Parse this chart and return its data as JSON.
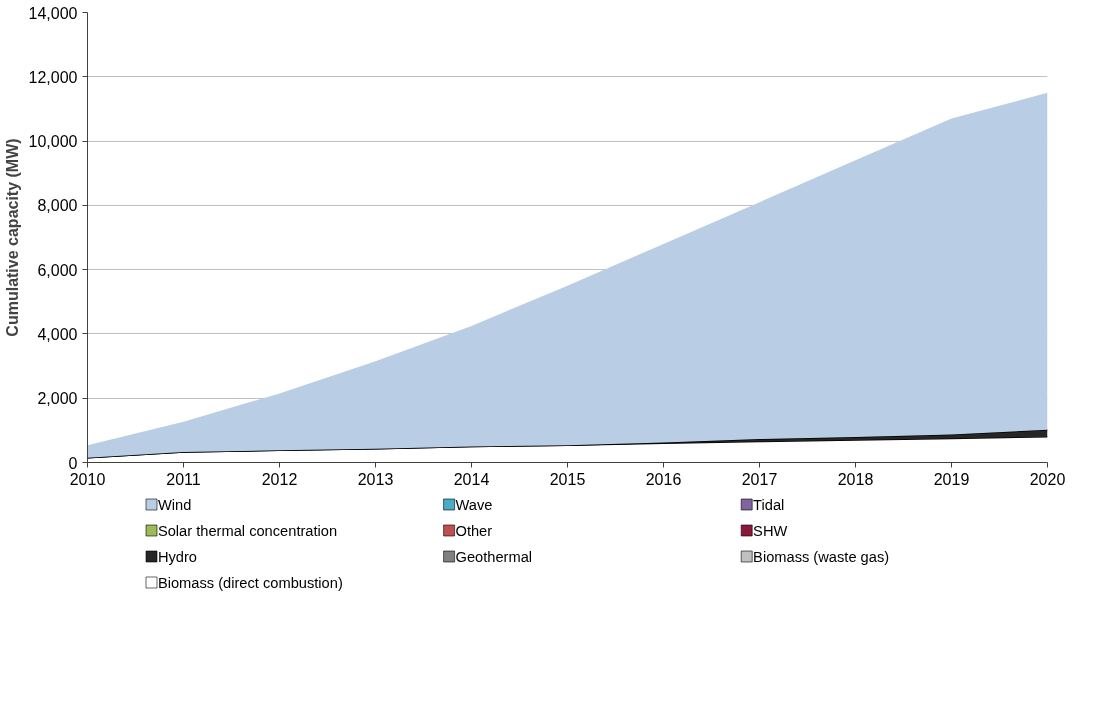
{
  "chart_data": {
    "type": "area",
    "stacked": true,
    "ylabel": "Cumulative capacity (MW)",
    "x": [
      2010,
      2011,
      2012,
      2013,
      2014,
      2015,
      2016,
      2017,
      2018,
      2019,
      2020
    ],
    "xlim": [
      2010,
      2020
    ],
    "xticks": [
      2010,
      2011,
      2012,
      2013,
      2014,
      2015,
      2016,
      2017,
      2018,
      2019,
      2020
    ],
    "ylim": [
      0,
      14000
    ],
    "yticks": [
      {
        "value": 0,
        "label": "0"
      },
      {
        "value": 2000,
        "label": "2,000"
      },
      {
        "value": 4000,
        "label": "4,000"
      },
      {
        "value": 6000,
        "label": "6,000"
      },
      {
        "value": 8000,
        "label": "8,000"
      },
      {
        "value": 10000,
        "label": "10,000"
      },
      {
        "value": 12000,
        "label": "12,000"
      },
      {
        "value": 14000,
        "label": "14,000"
      }
    ],
    "grid": "y",
    "legend": "bottom",
    "series": [
      {
        "name": "Biomass (direct combustion)",
        "color": "#ffffff",
        "values": [
          150,
          330,
          380,
          430,
          500,
          540,
          600,
          650,
          700,
          750,
          800
        ]
      },
      {
        "name": "Biomass (waste gas)",
        "color": "#c0c0c0",
        "values": [
          null,
          null,
          null,
          null,
          null,
          null,
          null,
          null,
          null,
          null,
          null
        ]
      },
      {
        "name": "Geothermal",
        "color": "#808080",
        "values": [
          null,
          null,
          null,
          null,
          null,
          null,
          null,
          null,
          null,
          null,
          null
        ]
      },
      {
        "name": "Hydro",
        "color": "#262626",
        "values": [
          0,
          0,
          0,
          0,
          0,
          0,
          20,
          80,
          90,
          120,
          220
        ]
      },
      {
        "name": "SHW",
        "color": "#8b1a3a",
        "values": [
          null,
          null,
          null,
          null,
          null,
          null,
          null,
          null,
          null,
          null,
          null
        ]
      },
      {
        "name": "Other",
        "color": "#c0504d",
        "values": [
          null,
          null,
          null,
          null,
          null,
          null,
          null,
          null,
          null,
          null,
          null
        ]
      },
      {
        "name": "Solar thermal concentration",
        "color": "#9bbb59",
        "values": [
          null,
          null,
          null,
          null,
          null,
          null,
          null,
          null,
          null,
          null,
          null
        ]
      },
      {
        "name": "Tidal",
        "color": "#8064a2",
        "values": [
          null,
          null,
          null,
          null,
          null,
          null,
          null,
          null,
          null,
          null,
          null
        ]
      },
      {
        "name": "Wave",
        "color": "#4bacc6",
        "values": [
          null,
          null,
          null,
          null,
          null,
          null,
          null,
          null,
          null,
          null,
          null
        ]
      },
      {
        "name": "Wind",
        "color": "#b9cde5",
        "values": [
          390,
          940,
          1770,
          2720,
          3750,
          4960,
          6180,
          7370,
          8610,
          9830,
          10480
        ]
      }
    ]
  }
}
